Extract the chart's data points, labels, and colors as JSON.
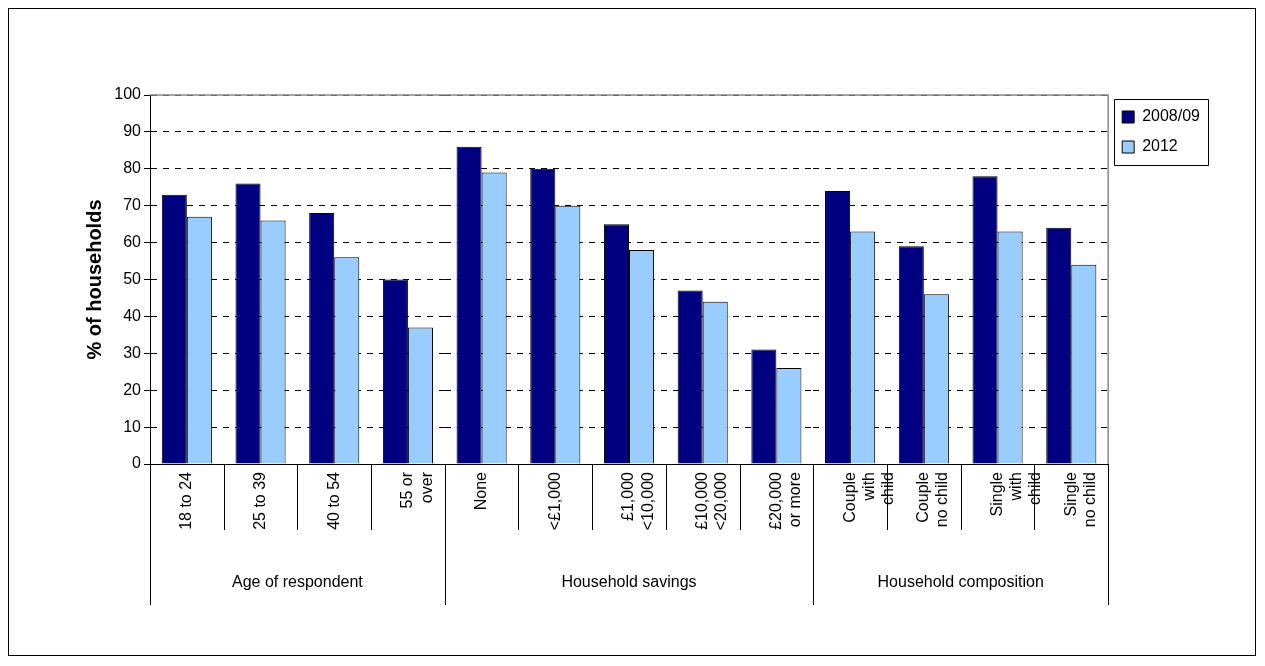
{
  "chart_data": [
    {
      "type": "bar",
      "ylabel": "% of households",
      "xlabel": "Age of respondent",
      "categories": [
        "18 to 24",
        "25 to 39",
        "40 to 54",
        "55 or\nover"
      ],
      "series": [
        {
          "color": "#000080",
          "values": [
            73,
            76,
            68,
            50
          ]
        },
        {
          "color": "#99ccff",
          "values": [
            67,
            66,
            56,
            37
          ]
        }
      ],
      "ylim": [
        0,
        100
      ],
      "yticks": [
        0,
        10,
        20,
        30,
        40,
        50,
        60,
        70,
        80,
        90,
        100
      ],
      "grid": "y"
    },
    {
      "type": "bar",
      "xlabel": "Household savings",
      "categories": [
        "None",
        "<£1,000",
        "£1,000\n<10,000",
        "£10,000\n<20,000",
        "£20,000\nor more"
      ],
      "series": [
        {
          "color": "#000080",
          "values": [
            86,
            80,
            65,
            47,
            31
          ]
        },
        {
          "color": "#99ccff",
          "values": [
            79,
            70,
            58,
            44,
            26
          ]
        }
      ],
      "ylim": [
        0,
        100
      ],
      "yticks": [
        0,
        10,
        20,
        30,
        40,
        50,
        60,
        70,
        80,
        90,
        100
      ],
      "grid": "y",
      "tick_labels": "x"
    },
    {
      "type": "bar",
      "xlabel": "Household composition",
      "categories": [
        "Couple\nwith\nchild",
        "Couple\nno child",
        "Single\nwith\nchild",
        "Single\nno child"
      ],
      "series": [
        {
          "name": "2008/09",
          "color": "#000080",
          "values": [
            74,
            59,
            78,
            64
          ]
        },
        {
          "name": "2012",
          "color": "#99ccff",
          "values": [
            63,
            46,
            63,
            54
          ]
        }
      ],
      "ylim": [
        0,
        100
      ],
      "yticks": [
        0,
        10,
        20,
        30,
        40,
        50,
        60,
        70,
        80,
        90,
        100
      ],
      "grid": "y",
      "tick_labels": "x",
      "legend": "top right"
    }
  ]
}
